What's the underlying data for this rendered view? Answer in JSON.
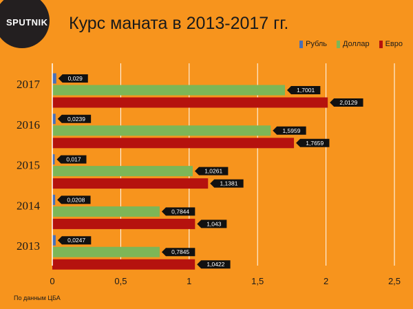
{
  "logo_text": "SPUTNIK",
  "source_note": "По данным ЦБА",
  "colors": {
    "background": "#f7941d",
    "ruble": "#4a6fb5",
    "dollar": "#7db657",
    "euro": "#b5120e",
    "logo_bg": "#231f20"
  },
  "chart_data": {
    "type": "bar",
    "orientation": "horizontal",
    "title": "Курс маната в 2013-2017 гг.",
    "categories": [
      "2017",
      "2016",
      "2015",
      "2014",
      "2013"
    ],
    "series": [
      {
        "name": "Рубль",
        "color": "#4a6fb5",
        "values": [
          0.029,
          0.0239,
          0.017,
          0.0208,
          0.0247
        ],
        "labels": [
          "0,029",
          "0,0239",
          "0,017",
          "0,0208",
          "0,0247"
        ]
      },
      {
        "name": "Доллар",
        "color": "#7db657",
        "values": [
          1.7001,
          1.5959,
          1.0261,
          0.7844,
          0.7845
        ],
        "labels": [
          "1,7001",
          "1,5959",
          "1,0261",
          "0,7844",
          "0,7845"
        ]
      },
      {
        "name": "Евро",
        "color": "#b5120e",
        "values": [
          2.0129,
          1.7659,
          1.1381,
          1.043,
          1.0422
        ],
        "labels": [
          "2,0129",
          "1,7659",
          "1,1381",
          "1,043",
          "1,0422"
        ]
      }
    ],
    "xlim": [
      0,
      2.5
    ],
    "xticks": [
      0,
      0.5,
      1,
      1.5,
      2,
      2.5
    ],
    "xtick_labels": [
      "0",
      "0,5",
      "1",
      "1,5",
      "2",
      "2,5"
    ],
    "grid": true,
    "legend_position": "top-right"
  }
}
